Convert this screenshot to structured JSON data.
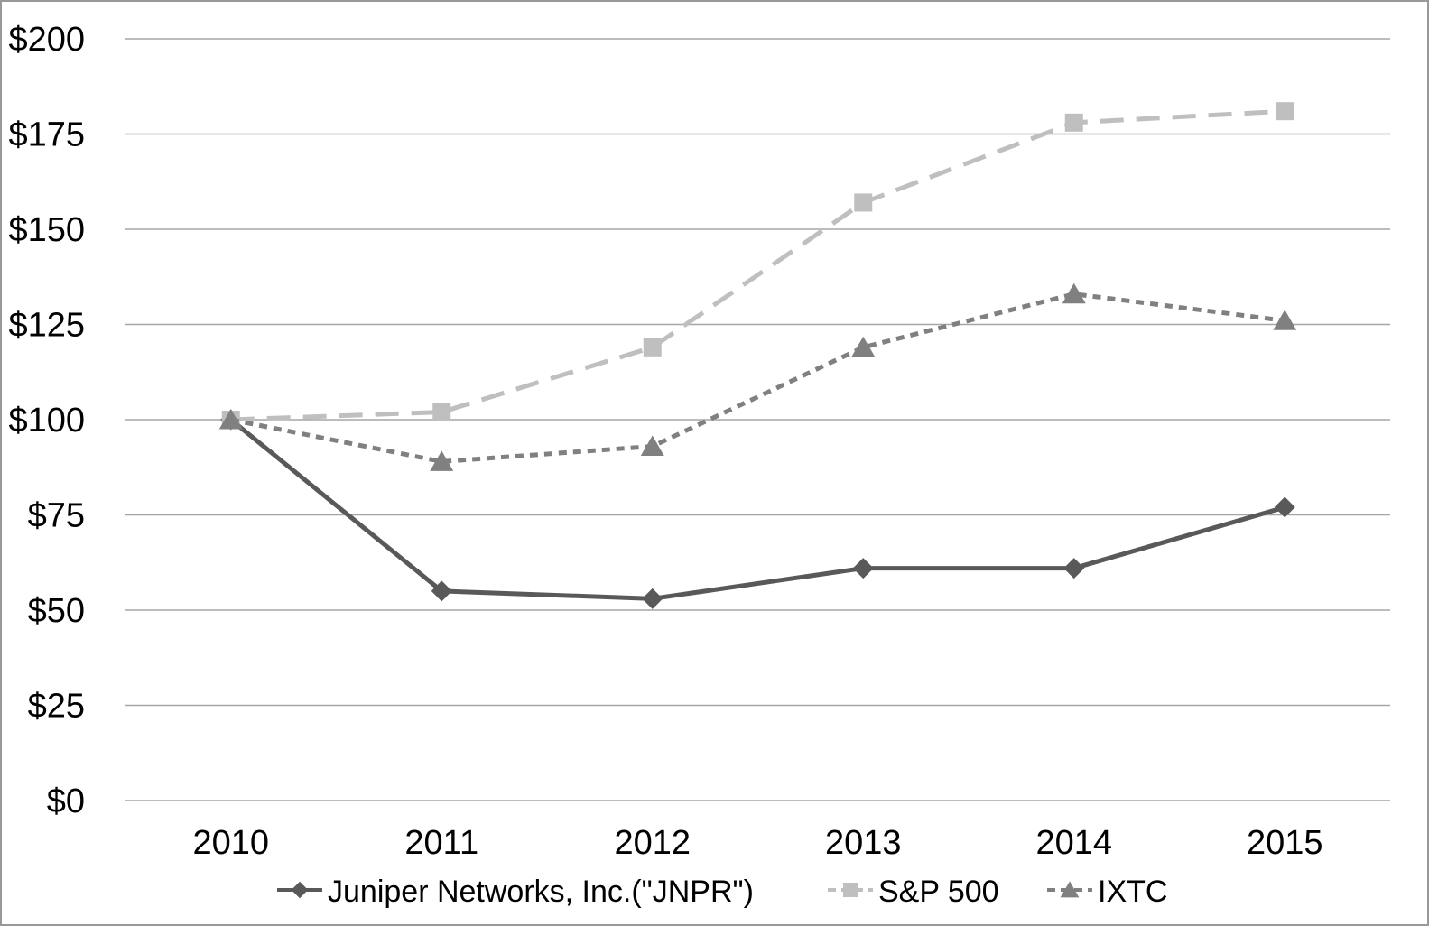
{
  "chart_data": {
    "type": "line",
    "title": "",
    "categories": [
      "2010",
      "2011",
      "2012",
      "2013",
      "2014",
      "2015"
    ],
    "series": [
      {
        "name": "Juniper Networks, Inc.(\"JNPR\")",
        "values": [
          100,
          55,
          53,
          61,
          61,
          77
        ],
        "color": "#595959",
        "marker": "diamond",
        "line_style": "solid"
      },
      {
        "name": "S&P 500",
        "values": [
          100,
          102,
          119,
          157,
          178,
          181
        ],
        "color": "#bfbfbf",
        "marker": "square",
        "line_style": "long-dash"
      },
      {
        "name": "IXTC",
        "values": [
          100,
          89,
          93,
          119,
          133,
          126
        ],
        "color": "#808080",
        "marker": "triangle",
        "line_style": "short-dash"
      }
    ],
    "y_axis": {
      "min": 0,
      "max": 200,
      "step": 25,
      "prefix": "$",
      "ticks": [
        "$0",
        "$25",
        "$50",
        "$75",
        "$100",
        "$125",
        "$150",
        "$175",
        "$200"
      ]
    },
    "x_axis": {
      "ticks": [
        "2010",
        "2011",
        "2012",
        "2013",
        "2014",
        "2015"
      ]
    },
    "grid": true,
    "legend_position": "bottom",
    "colors": {
      "gridline": "#a6a6a6",
      "text": "#000000",
      "border": "#999999",
      "background": "#ffffff"
    }
  }
}
